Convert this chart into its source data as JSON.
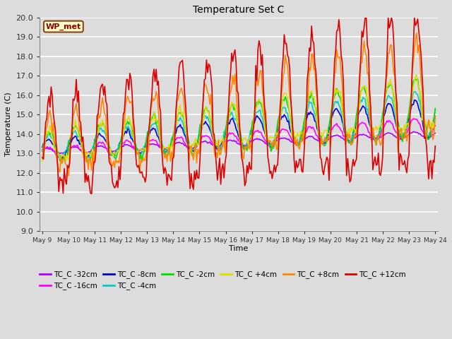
{
  "title": "Temperature Set C",
  "xlabel": "Time",
  "ylabel": "Temperature (C)",
  "ylim": [
    9.0,
    20.0
  ],
  "yticks": [
    9.0,
    10.0,
    11.0,
    12.0,
    13.0,
    14.0,
    15.0,
    16.0,
    17.0,
    18.0,
    19.0,
    20.0
  ],
  "background_color": "#dcdcdc",
  "wp_met_box_color": "#ffffcc",
  "wp_met_border_color": "#8b4513",
  "series_colors": {
    "TC_C -32cm": "#aa00ff",
    "TC_C -16cm": "#ff00ff",
    "TC_C -8cm": "#0000dd",
    "TC_C -4cm": "#00cccc",
    "TC_C -2cm": "#00dd00",
    "TC_C +4cm": "#dddd00",
    "TC_C +8cm": "#ff8800",
    "TC_C +12cm": "#dd0000"
  },
  "legend_order": [
    "TC_C -32cm",
    "TC_C -16cm",
    "TC_C -8cm",
    "TC_C -4cm",
    "TC_C -2cm",
    "TC_C +4cm",
    "TC_C +8cm",
    "TC_C +12cm"
  ],
  "figsize": [
    6.4,
    4.8
  ],
  "dpi": 100
}
